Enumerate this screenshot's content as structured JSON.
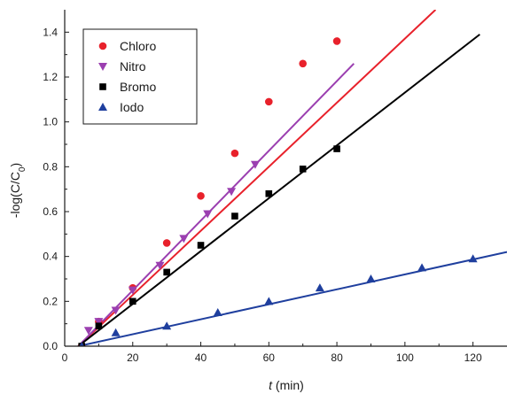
{
  "chart_data": {
    "type": "scatter",
    "title": "",
    "xlabel_var": "t",
    "xlabel_unit": " (min)",
    "ylabel_main": "-log(C/C",
    "ylabel_sub": "0",
    "ylabel_close": ")",
    "xlim": [
      0,
      130
    ],
    "ylim": [
      0,
      1.5
    ],
    "xticks": [
      "0",
      "20",
      "40",
      "60",
      "80",
      "100",
      "120"
    ],
    "yticks": [
      "0.0",
      "0.2",
      "0.4",
      "0.6",
      "0.8",
      "1.0",
      "1.2",
      "1.4"
    ],
    "legend_position": "top-left",
    "grid": false,
    "series": [
      {
        "name": "Chloro",
        "color": "#e8212b",
        "marker": "circle",
        "x": [
          5,
          10,
          20,
          30,
          40,
          50,
          60,
          70,
          80
        ],
        "y": [
          0.0,
          0.11,
          0.26,
          0.46,
          0.67,
          0.86,
          1.09,
          1.26,
          1.36
        ],
        "fit": {
          "x": [
            4,
            109
          ],
          "y": [
            0.0,
            1.5
          ]
        }
      },
      {
        "name": "Nitro",
        "color": "#9b3fb0",
        "marker": "triangle-down",
        "x": [
          7,
          10,
          15,
          20,
          28,
          35,
          42,
          49,
          56
        ],
        "y": [
          0.07,
          0.11,
          0.16,
          0.25,
          0.36,
          0.48,
          0.59,
          0.69,
          0.81
        ],
        "fit": {
          "x": [
            4,
            85
          ],
          "y": [
            0.0,
            1.26
          ]
        }
      },
      {
        "name": "Bromo",
        "color": "#000000",
        "marker": "square",
        "x": [
          5,
          10,
          20,
          30,
          40,
          50,
          60,
          70,
          80
        ],
        "y": [
          0.0,
          0.09,
          0.2,
          0.33,
          0.45,
          0.58,
          0.68,
          0.79,
          0.88
        ],
        "fit": {
          "x": [
            4,
            122
          ],
          "y": [
            0.0,
            1.39
          ]
        }
      },
      {
        "name": "Iodo",
        "color": "#1f3f9e",
        "marker": "triangle-up",
        "x": [
          5,
          15,
          30,
          45,
          60,
          75,
          90,
          105,
          120
        ],
        "y": [
          0.0,
          0.06,
          0.09,
          0.15,
          0.2,
          0.26,
          0.3,
          0.35,
          0.39
        ],
        "fit": {
          "x": [
            4,
            130
          ],
          "y": [
            0.0,
            0.42
          ]
        }
      }
    ]
  }
}
